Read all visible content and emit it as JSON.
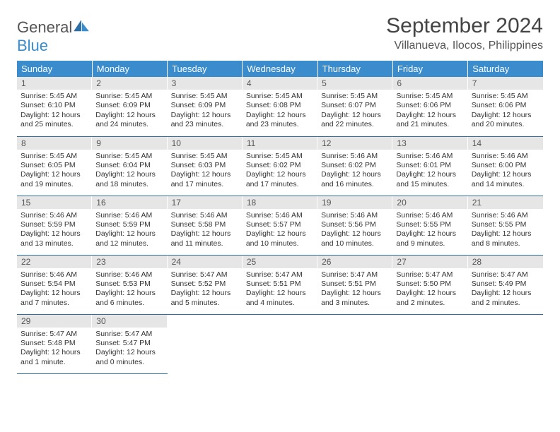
{
  "logo": {
    "word1": "General",
    "word2": "Blue"
  },
  "title": "September 2024",
  "location": "Villanueva, Ilocos, Philippines",
  "colors": {
    "header_bg": "#3a8ccc",
    "header_text": "#ffffff",
    "daynum_bg": "#e6e6e6",
    "cell_border": "#2f6ea3",
    "page_bg": "#ffffff",
    "body_text": "#333333"
  },
  "day_headers": [
    "Sunday",
    "Monday",
    "Tuesday",
    "Wednesday",
    "Thursday",
    "Friday",
    "Saturday"
  ],
  "weeks": [
    [
      {
        "n": "1",
        "sr": "Sunrise: 5:45 AM",
        "ss": "Sunset: 6:10 PM",
        "d1": "Daylight: 12 hours",
        "d2": "and 25 minutes."
      },
      {
        "n": "2",
        "sr": "Sunrise: 5:45 AM",
        "ss": "Sunset: 6:09 PM",
        "d1": "Daylight: 12 hours",
        "d2": "and 24 minutes."
      },
      {
        "n": "3",
        "sr": "Sunrise: 5:45 AM",
        "ss": "Sunset: 6:09 PM",
        "d1": "Daylight: 12 hours",
        "d2": "and 23 minutes."
      },
      {
        "n": "4",
        "sr": "Sunrise: 5:45 AM",
        "ss": "Sunset: 6:08 PM",
        "d1": "Daylight: 12 hours",
        "d2": "and 23 minutes."
      },
      {
        "n": "5",
        "sr": "Sunrise: 5:45 AM",
        "ss": "Sunset: 6:07 PM",
        "d1": "Daylight: 12 hours",
        "d2": "and 22 minutes."
      },
      {
        "n": "6",
        "sr": "Sunrise: 5:45 AM",
        "ss": "Sunset: 6:06 PM",
        "d1": "Daylight: 12 hours",
        "d2": "and 21 minutes."
      },
      {
        "n": "7",
        "sr": "Sunrise: 5:45 AM",
        "ss": "Sunset: 6:06 PM",
        "d1": "Daylight: 12 hours",
        "d2": "and 20 minutes."
      }
    ],
    [
      {
        "n": "8",
        "sr": "Sunrise: 5:45 AM",
        "ss": "Sunset: 6:05 PM",
        "d1": "Daylight: 12 hours",
        "d2": "and 19 minutes."
      },
      {
        "n": "9",
        "sr": "Sunrise: 5:45 AM",
        "ss": "Sunset: 6:04 PM",
        "d1": "Daylight: 12 hours",
        "d2": "and 18 minutes."
      },
      {
        "n": "10",
        "sr": "Sunrise: 5:45 AM",
        "ss": "Sunset: 6:03 PM",
        "d1": "Daylight: 12 hours",
        "d2": "and 17 minutes."
      },
      {
        "n": "11",
        "sr": "Sunrise: 5:45 AM",
        "ss": "Sunset: 6:02 PM",
        "d1": "Daylight: 12 hours",
        "d2": "and 17 minutes."
      },
      {
        "n": "12",
        "sr": "Sunrise: 5:46 AM",
        "ss": "Sunset: 6:02 PM",
        "d1": "Daylight: 12 hours",
        "d2": "and 16 minutes."
      },
      {
        "n": "13",
        "sr": "Sunrise: 5:46 AM",
        "ss": "Sunset: 6:01 PM",
        "d1": "Daylight: 12 hours",
        "d2": "and 15 minutes."
      },
      {
        "n": "14",
        "sr": "Sunrise: 5:46 AM",
        "ss": "Sunset: 6:00 PM",
        "d1": "Daylight: 12 hours",
        "d2": "and 14 minutes."
      }
    ],
    [
      {
        "n": "15",
        "sr": "Sunrise: 5:46 AM",
        "ss": "Sunset: 5:59 PM",
        "d1": "Daylight: 12 hours",
        "d2": "and 13 minutes."
      },
      {
        "n": "16",
        "sr": "Sunrise: 5:46 AM",
        "ss": "Sunset: 5:59 PM",
        "d1": "Daylight: 12 hours",
        "d2": "and 12 minutes."
      },
      {
        "n": "17",
        "sr": "Sunrise: 5:46 AM",
        "ss": "Sunset: 5:58 PM",
        "d1": "Daylight: 12 hours",
        "d2": "and 11 minutes."
      },
      {
        "n": "18",
        "sr": "Sunrise: 5:46 AM",
        "ss": "Sunset: 5:57 PM",
        "d1": "Daylight: 12 hours",
        "d2": "and 10 minutes."
      },
      {
        "n": "19",
        "sr": "Sunrise: 5:46 AM",
        "ss": "Sunset: 5:56 PM",
        "d1": "Daylight: 12 hours",
        "d2": "and 10 minutes."
      },
      {
        "n": "20",
        "sr": "Sunrise: 5:46 AM",
        "ss": "Sunset: 5:55 PM",
        "d1": "Daylight: 12 hours",
        "d2": "and 9 minutes."
      },
      {
        "n": "21",
        "sr": "Sunrise: 5:46 AM",
        "ss": "Sunset: 5:55 PM",
        "d1": "Daylight: 12 hours",
        "d2": "and 8 minutes."
      }
    ],
    [
      {
        "n": "22",
        "sr": "Sunrise: 5:46 AM",
        "ss": "Sunset: 5:54 PM",
        "d1": "Daylight: 12 hours",
        "d2": "and 7 minutes."
      },
      {
        "n": "23",
        "sr": "Sunrise: 5:46 AM",
        "ss": "Sunset: 5:53 PM",
        "d1": "Daylight: 12 hours",
        "d2": "and 6 minutes."
      },
      {
        "n": "24",
        "sr": "Sunrise: 5:47 AM",
        "ss": "Sunset: 5:52 PM",
        "d1": "Daylight: 12 hours",
        "d2": "and 5 minutes."
      },
      {
        "n": "25",
        "sr": "Sunrise: 5:47 AM",
        "ss": "Sunset: 5:51 PM",
        "d1": "Daylight: 12 hours",
        "d2": "and 4 minutes."
      },
      {
        "n": "26",
        "sr": "Sunrise: 5:47 AM",
        "ss": "Sunset: 5:51 PM",
        "d1": "Daylight: 12 hours",
        "d2": "and 3 minutes."
      },
      {
        "n": "27",
        "sr": "Sunrise: 5:47 AM",
        "ss": "Sunset: 5:50 PM",
        "d1": "Daylight: 12 hours",
        "d2": "and 2 minutes."
      },
      {
        "n": "28",
        "sr": "Sunrise: 5:47 AM",
        "ss": "Sunset: 5:49 PM",
        "d1": "Daylight: 12 hours",
        "d2": "and 2 minutes."
      }
    ],
    [
      {
        "n": "29",
        "sr": "Sunrise: 5:47 AM",
        "ss": "Sunset: 5:48 PM",
        "d1": "Daylight: 12 hours",
        "d2": "and 1 minute."
      },
      {
        "n": "30",
        "sr": "Sunrise: 5:47 AM",
        "ss": "Sunset: 5:47 PM",
        "d1": "Daylight: 12 hours",
        "d2": "and 0 minutes."
      },
      null,
      null,
      null,
      null,
      null
    ]
  ]
}
